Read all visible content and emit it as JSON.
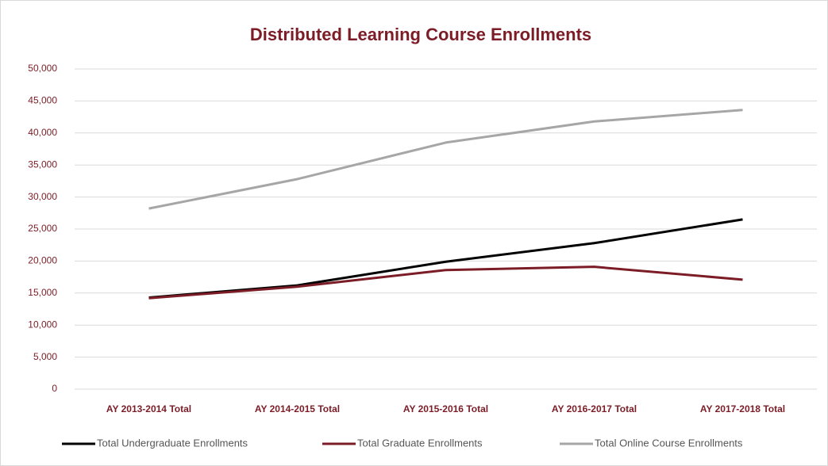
{
  "chart_data": {
    "type": "line",
    "title": "Distributed Learning Course Enrollments",
    "categories": [
      "AY 2013-2014 Total",
      "AY 2014-2015 Total",
      "AY 2015-2016 Total",
      "AY 2016-2017 Total",
      "AY 2017-2018 Total"
    ],
    "series": [
      {
        "name": "Total Undergraduate Enrollments",
        "color": "#000000",
        "values": [
          14300,
          16200,
          19900,
          22800,
          26500
        ]
      },
      {
        "name": "Total Graduate Enrollments",
        "color": "#7b1c26",
        "values": [
          14200,
          16000,
          18600,
          19100,
          17100
        ]
      },
      {
        "name": "Total Online Course Enrollments",
        "color": "#a6a6a6",
        "values": [
          28200,
          32800,
          38500,
          41800,
          43600
        ]
      }
    ],
    "ylim": [
      0,
      50000
    ],
    "yticks": [
      0,
      {
        "value": 5000,
        "label": "5,000"
      },
      {
        "value": 10000,
        "label": "10,000"
      },
      {
        "value": 15000,
        "label": "15,000"
      },
      {
        "value": 20000,
        "label": "20,000"
      },
      {
        "value": 25000,
        "label": "25,000"
      },
      {
        "value": 30000,
        "label": "30,000"
      },
      {
        "value": 35000,
        "label": "35,000"
      },
      {
        "value": 40000,
        "label": "40,000"
      },
      {
        "value": 45000,
        "label": "45,000"
      },
      {
        "value": 50000,
        "label": "50,000"
      }
    ],
    "grid": true,
    "legend": "bottom"
  }
}
